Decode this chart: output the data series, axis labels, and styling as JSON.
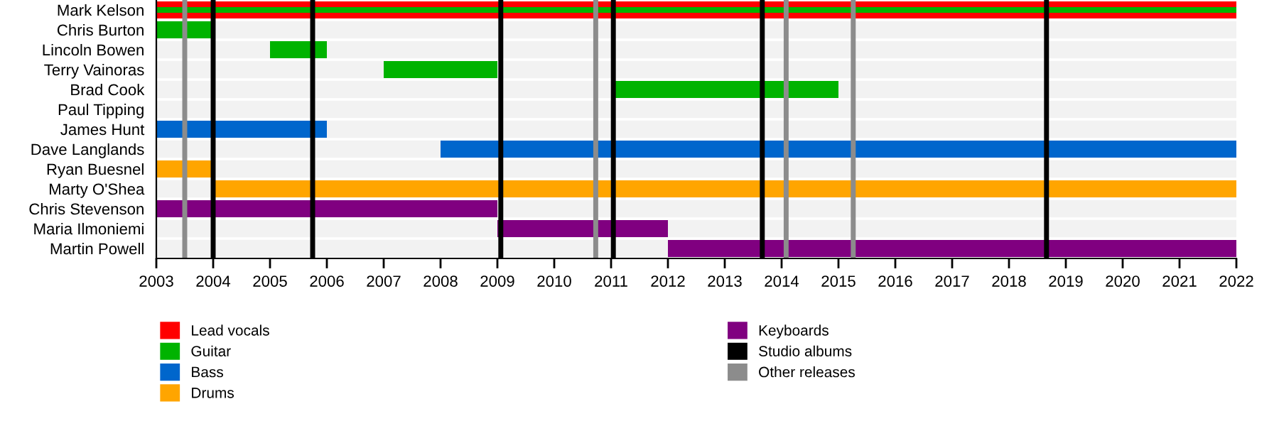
{
  "chart_data": {
    "type": "bar",
    "orientation": "horizontal",
    "categories": [
      "Mark Kelson",
      "Chris Burton",
      "Lincoln Bowen",
      "Terry Vainoras",
      "Brad Cook",
      "Paul Tipping",
      "James Hunt",
      "Dave Langlands",
      "Ryan Buesnel",
      "Marty O'Shea",
      "Chris Stevenson",
      "Maria Ilmoniemi",
      "Martin Powell"
    ],
    "series": [
      {
        "name": "Lead vocals",
        "color": "#ff0000",
        "base": [
          2003,
          null,
          null,
          null,
          null,
          null,
          null,
          null,
          null,
          null,
          null,
          null,
          null
        ],
        "values": [
          19,
          null,
          null,
          null,
          null,
          null,
          null,
          null,
          null,
          null,
          null,
          null,
          null
        ]
      },
      {
        "name": "Guitar",
        "color": "#00b300",
        "base": [
          2003,
          2003,
          2005,
          2007,
          2011,
          null,
          null,
          null,
          null,
          null,
          null,
          null,
          null
        ],
        "values": [
          19,
          1,
          1,
          2,
          4,
          null,
          null,
          null,
          null,
          null,
          null,
          null,
          null
        ]
      },
      {
        "name": "Bass",
        "color": "#0066cc",
        "base": [
          null,
          null,
          null,
          null,
          null,
          null,
          2003,
          2008,
          null,
          null,
          null,
          null,
          null
        ],
        "values": [
          null,
          null,
          null,
          null,
          null,
          null,
          3,
          14,
          null,
          null,
          null,
          null,
          null
        ]
      },
      {
        "name": "Drums",
        "color": "#ffa500",
        "base": [
          null,
          null,
          null,
          null,
          null,
          null,
          null,
          null,
          2003,
          2004,
          null,
          null,
          null
        ],
        "values": [
          null,
          null,
          null,
          null,
          null,
          null,
          null,
          null,
          1,
          18,
          null,
          null,
          null
        ]
      },
      {
        "name": "Keyboards",
        "color": "#800080",
        "base": [
          null,
          null,
          null,
          null,
          null,
          null,
          null,
          null,
          null,
          null,
          2003,
          2009,
          2012
        ],
        "values": [
          null,
          null,
          null,
          null,
          null,
          null,
          null,
          null,
          null,
          null,
          6,
          3,
          10
        ]
      }
    ],
    "ref_lines": [
      {
        "axis": "x",
        "value": 2004.0,
        "label": "Studio albums",
        "color": "#000000"
      },
      {
        "axis": "x",
        "value": 2005.75,
        "color": "#000000"
      },
      {
        "axis": "x",
        "value": 2009.06,
        "color": "#000000"
      },
      {
        "axis": "x",
        "value": 2011.04,
        "color": "#000000"
      },
      {
        "axis": "x",
        "value": 2013.66,
        "color": "#000000"
      },
      {
        "axis": "x",
        "value": 2018.66,
        "color": "#000000"
      },
      {
        "axis": "x",
        "value": 2003.5,
        "label": "Other releases",
        "color": "#8c8c8c"
      },
      {
        "axis": "x",
        "value": 2010.73,
        "color": "#8c8c8c"
      },
      {
        "axis": "x",
        "value": 2014.08,
        "color": "#8c8c8c"
      },
      {
        "axis": "x",
        "value": 2015.26,
        "color": "#8c8c8c"
      }
    ],
    "xlim": [
      2003,
      2022
    ],
    "xticks": [
      2003,
      2004,
      2005,
      2006,
      2007,
      2008,
      2009,
      2010,
      2011,
      2012,
      2013,
      2014,
      2015,
      2016,
      2017,
      2018,
      2019,
      2020,
      2021,
      2022
    ],
    "legend": "bottom",
    "grid": false
  }
}
